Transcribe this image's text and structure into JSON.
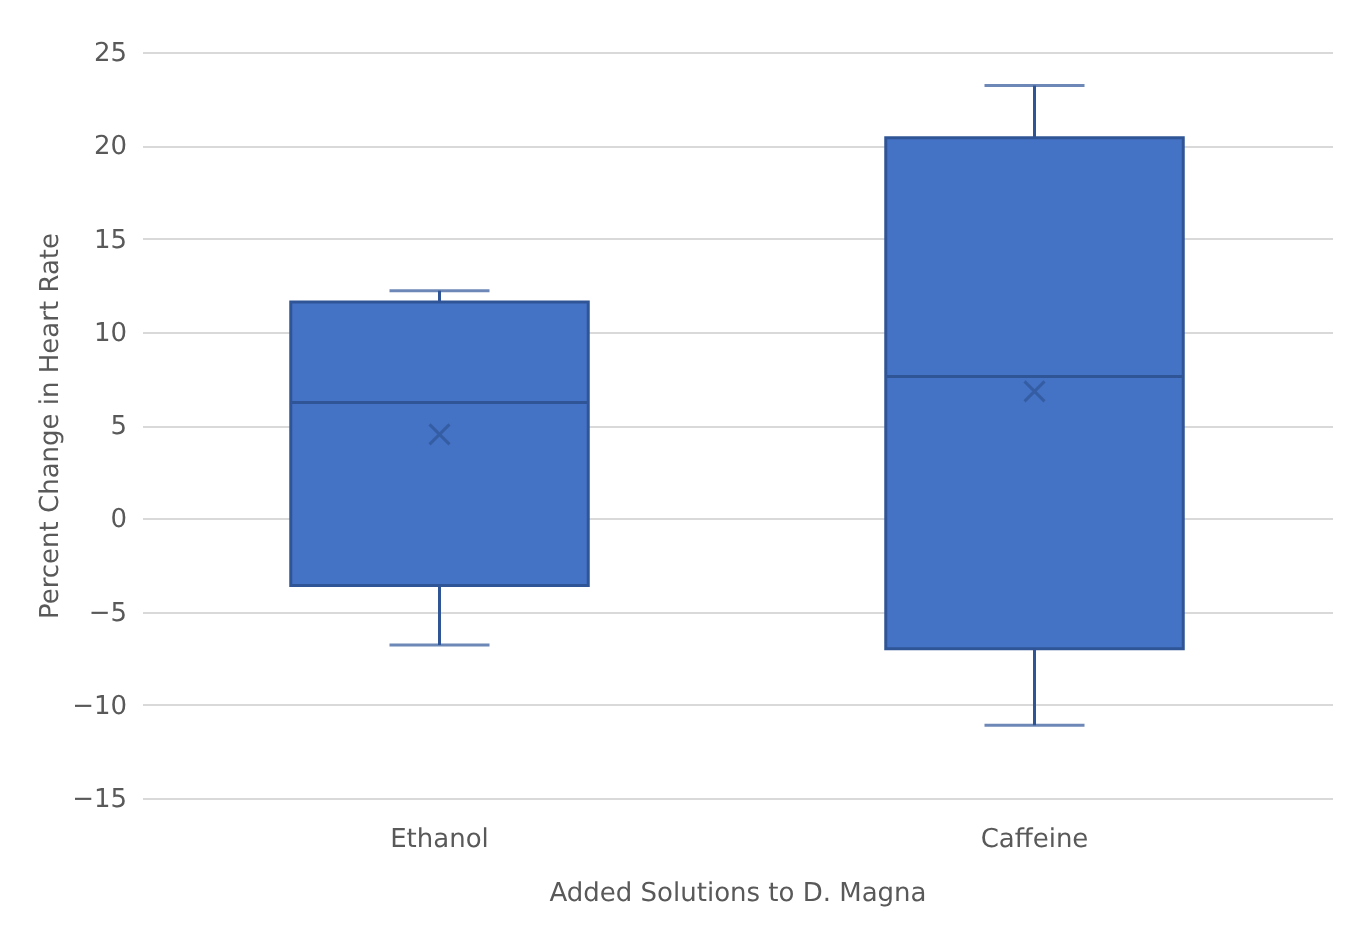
{
  "chart_data": {
    "type": "box",
    "categories": [
      "Ethanol",
      "Caffeine"
    ],
    "xlabel": "Added Solutions to D. Magna",
    "ylabel": "Percent Change in Heart Rate",
    "color": "#4472c4",
    "boxes": [
      {
        "low": -6.8,
        "q1": -3.6,
        "median": 6.2,
        "q3": 11.6,
        "high": 12.2,
        "mean": 4.5
      },
      {
        "low": -11.1,
        "q1": -7.0,
        "median": 7.6,
        "q3": 20.4,
        "high": 23.2,
        "mean": 6.8
      }
    ],
    "ylim": [
      -15,
      25
    ],
    "yticks": [
      -15,
      -10,
      -5,
      0,
      5,
      10,
      15,
      20,
      25
    ],
    "grid": "y",
    "marker": "cross"
  }
}
